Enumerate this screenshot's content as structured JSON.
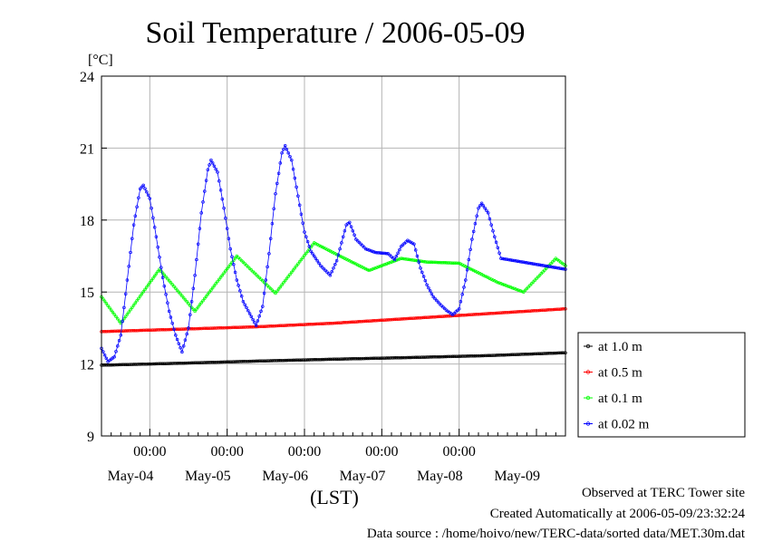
{
  "chart_data": {
    "type": "line",
    "title": "Soil Temperature / 2006-05-09",
    "ylabel": "[°C]",
    "xlabel": "(LST)",
    "x_start": "2006-05-03T09:00",
    "x_end": "2006-05-09T09:00",
    "ylim": [
      9,
      24
    ],
    "yticks": [
      9,
      12,
      15,
      18,
      21,
      24
    ],
    "xticks": [
      "00:00",
      "00:00",
      "00:00",
      "00:00",
      "00:00"
    ],
    "xtick_times": [
      "2006-05-04T00:00",
      "2006-05-05T00:00",
      "2006-05-06T00:00",
      "2006-05-07T00:00",
      "2006-05-08T00:00"
    ],
    "day_labels": [
      "May-04",
      "May-05",
      "May-06",
      "May-07",
      "May-08",
      "May-09"
    ],
    "day_label_times": [
      "2006-05-03T18:00",
      "2006-05-04T18:00",
      "2006-05-05T18:00",
      "2006-05-06T18:00",
      "2006-05-07T18:00",
      "2006-05-08T18:00"
    ],
    "grid": true,
    "legend": "right",
    "series": [
      {
        "name": "at 1.0 m",
        "color": "#000000",
        "points": [
          [
            "2006-05-03T09:00",
            11.95
          ],
          [
            "2006-05-04T09:00",
            12.03
          ],
          [
            "2006-05-05T09:00",
            12.12
          ],
          [
            "2006-05-06T09:00",
            12.2
          ],
          [
            "2006-05-07T09:00",
            12.27
          ],
          [
            "2006-05-08T09:00",
            12.35
          ],
          [
            "2006-05-09T09:00",
            12.47
          ]
        ]
      },
      {
        "name": "at 0.5 m",
        "color": "#ff0000",
        "points": [
          [
            "2006-05-03T09:00",
            13.35
          ],
          [
            "2006-05-04T09:00",
            13.45
          ],
          [
            "2006-05-05T09:00",
            13.55
          ],
          [
            "2006-05-06T09:00",
            13.7
          ],
          [
            "2006-05-07T09:00",
            13.9
          ],
          [
            "2006-05-08T09:00",
            14.1
          ],
          [
            "2006-05-09T09:00",
            14.3
          ]
        ]
      },
      {
        "name": "at 0.1 m",
        "color": "#00ff00",
        "points": [
          [
            "2006-05-03T09:00",
            14.8
          ],
          [
            "2006-05-03T15:00",
            13.7
          ],
          [
            "2006-05-04T03:00",
            15.95
          ],
          [
            "2006-05-04T14:00",
            14.2
          ],
          [
            "2006-05-05T03:00",
            16.5
          ],
          [
            "2006-05-05T15:00",
            14.95
          ],
          [
            "2006-05-06T03:00",
            17.05
          ],
          [
            "2006-05-06T11:00",
            16.5
          ],
          [
            "2006-05-06T20:00",
            15.9
          ],
          [
            "2006-05-07T06:00",
            16.4
          ],
          [
            "2006-05-07T14:00",
            16.25
          ],
          [
            "2006-05-08T00:00",
            16.2
          ],
          [
            "2006-05-08T12:00",
            15.4
          ],
          [
            "2006-05-08T20:00",
            15.0
          ],
          [
            "2006-05-09T06:00",
            16.4
          ],
          [
            "2006-05-09T09:00",
            16.1
          ]
        ]
      },
      {
        "name": "at 0.02 m",
        "color": "#0000ff",
        "points": [
          [
            "2006-05-03T09:00",
            12.65
          ],
          [
            "2006-05-03T11:00",
            12.1
          ],
          [
            "2006-05-03T13:00",
            12.3
          ],
          [
            "2006-05-03T15:00",
            13.2
          ],
          [
            "2006-05-03T17:00",
            15.5
          ],
          [
            "2006-05-03T19:00",
            17.8
          ],
          [
            "2006-05-03T21:00",
            19.3
          ],
          [
            "2006-05-03T22:00",
            19.45
          ],
          [
            "2006-05-04T00:00",
            18.9
          ],
          [
            "2006-05-04T02:00",
            17.3
          ],
          [
            "2006-05-04T04:00",
            15.6
          ],
          [
            "2006-05-04T06:00",
            14.2
          ],
          [
            "2006-05-04T08:00",
            13.2
          ],
          [
            "2006-05-04T10:00",
            12.5
          ],
          [
            "2006-05-04T12:00",
            13.5
          ],
          [
            "2006-05-04T14:00",
            15.7
          ],
          [
            "2006-05-04T16:00",
            18.3
          ],
          [
            "2006-05-04T18:00",
            20.1
          ],
          [
            "2006-05-04T19:00",
            20.5
          ],
          [
            "2006-05-04T21:00",
            20.0
          ],
          [
            "2006-05-04T23:00",
            18.5
          ],
          [
            "2006-05-05T01:00",
            16.8
          ],
          [
            "2006-05-05T03:00",
            15.5
          ],
          [
            "2006-05-05T05:00",
            14.6
          ],
          [
            "2006-05-05T07:00",
            14.1
          ],
          [
            "2006-05-05T09:00",
            13.6
          ],
          [
            "2006-05-05T11:00",
            14.4
          ],
          [
            "2006-05-05T13:00",
            16.6
          ],
          [
            "2006-05-05T15:00",
            19.1
          ],
          [
            "2006-05-05T17:00",
            20.8
          ],
          [
            "2006-05-05T18:00",
            21.1
          ],
          [
            "2006-05-05T20:00",
            20.5
          ],
          [
            "2006-05-05T22:00",
            19.0
          ],
          [
            "2006-05-06T00:00",
            17.5
          ],
          [
            "2006-05-06T02:00",
            16.7
          ],
          [
            "2006-05-06T05:00",
            16.1
          ],
          [
            "2006-05-06T08:00",
            15.7
          ],
          [
            "2006-05-06T10:00",
            16.3
          ],
          [
            "2006-05-06T13:00",
            17.8
          ],
          [
            "2006-05-06T14:00",
            17.9
          ],
          [
            "2006-05-06T16:00",
            17.2
          ],
          [
            "2006-05-06T19:00",
            16.8
          ],
          [
            "2006-05-06T22:00",
            16.65
          ],
          [
            "2006-05-07T02:00",
            16.6
          ],
          [
            "2006-05-07T04:00",
            16.35
          ],
          [
            "2006-05-07T06:00",
            16.9
          ],
          [
            "2006-05-07T08:00",
            17.15
          ],
          [
            "2006-05-07T10:00",
            17.0
          ],
          [
            "2006-05-07T12:00",
            16.0
          ],
          [
            "2006-05-07T14:00",
            15.3
          ],
          [
            "2006-05-07T16:00",
            14.8
          ],
          [
            "2006-05-07T18:00",
            14.5
          ],
          [
            "2006-05-07T20:00",
            14.25
          ],
          [
            "2006-05-07T22:00",
            14.05
          ],
          [
            "2006-05-08T00:00",
            14.3
          ],
          [
            "2006-05-08T02:00",
            15.5
          ],
          [
            "2006-05-08T04:00",
            17.2
          ],
          [
            "2006-05-08T06:00",
            18.5
          ],
          [
            "2006-05-08T07:00",
            18.7
          ],
          [
            "2006-05-08T09:00",
            18.3
          ],
          [
            "2006-05-08T11:00",
            17.3
          ],
          [
            "2006-05-08T13:00",
            16.4
          ],
          [
            "2006-05-09T09:00",
            15.95
          ]
        ]
      }
    ]
  },
  "footer": {
    "line1": "Observed at TERC Tower site",
    "line2": "Created Automatically at 2006-05-09/23:32:24",
    "line3": "Data source : /home/hoivo/new/TERC-data/sorted  data/MET.30m.dat"
  }
}
